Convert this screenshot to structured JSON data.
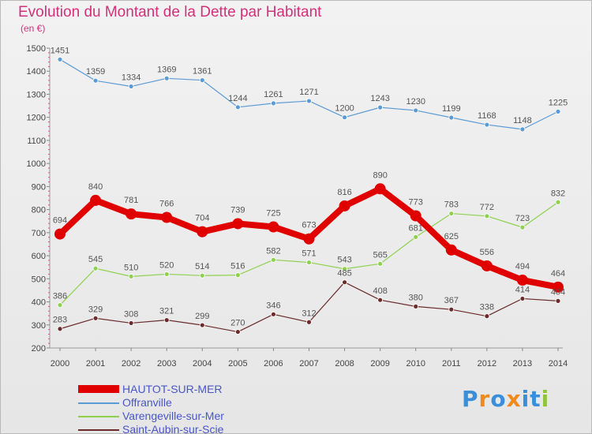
{
  "header": {
    "title": "Evolution du Montant de la Dette par Habitant",
    "unit": "(en €)"
  },
  "colors": {
    "title": "#d2307a",
    "hautot": "#e00000",
    "offranville": "#5b9bd5",
    "varengeville": "#8fd14f",
    "saint_aubin": "#6b2b2b",
    "legend_text": "#4a55c8"
  },
  "brand": {
    "text": "Proxiti"
  },
  "chart_data": {
    "type": "line",
    "x": [
      "2000",
      "2001",
      "2002",
      "2003",
      "2004",
      "2005",
      "2006",
      "2007",
      "2008",
      "2009",
      "2010",
      "2011",
      "2012",
      "2013",
      "2014"
    ],
    "ylim": [
      200,
      1500
    ],
    "yticks": [
      200,
      300,
      400,
      500,
      600,
      700,
      800,
      900,
      1000,
      1100,
      1200,
      1300,
      1400,
      1500
    ],
    "grid": false,
    "legend_position": "bottom-left",
    "series": [
      {
        "name": "HAUTOT-SUR-MER",
        "values": [
          694,
          840,
          781,
          766,
          704,
          739,
          725,
          673,
          816,
          890,
          773,
          625,
          556,
          494,
          464
        ]
      },
      {
        "name": "Offranville",
        "values": [
          1451,
          1359,
          1334,
          1369,
          1361,
          1244,
          1261,
          1271,
          1200,
          1243,
          1230,
          1199,
          1168,
          1148,
          1225
        ]
      },
      {
        "name": "Varengeville-sur-Mer",
        "values": [
          386,
          545,
          510,
          520,
          514,
          516,
          582,
          571,
          543,
          565,
          681,
          783,
          772,
          723,
          832
        ]
      },
      {
        "name": "Saint-Aubin-sur-Scie",
        "values": [
          283,
          329,
          308,
          321,
          299,
          270,
          346,
          312,
          485,
          408,
          380,
          367,
          338,
          414,
          404
        ]
      }
    ]
  }
}
